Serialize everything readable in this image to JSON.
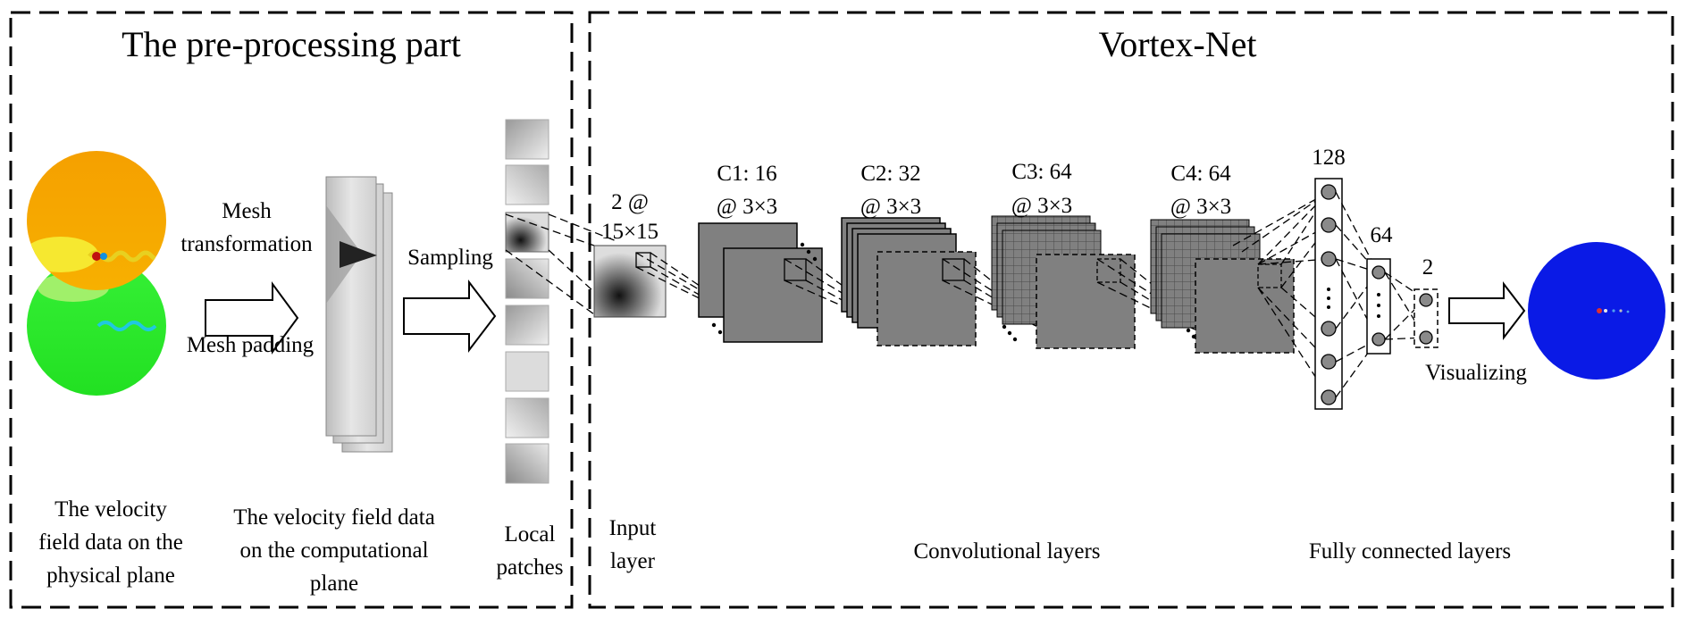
{
  "preprocessing": {
    "title": "The pre-processing part",
    "mesh_label_1": "Mesh",
    "mesh_label_2": "transformation",
    "mesh_padding": "Mesh padding",
    "sampling": "Sampling",
    "caption_physical": [
      "The velocity",
      "field data on the",
      "physical plane"
    ],
    "caption_computational": [
      "The velocity field data",
      "on the computational",
      "plane"
    ],
    "caption_patches": [
      "Local",
      "patches"
    ]
  },
  "vortexnet": {
    "title": "Vortex-Net",
    "input_label": [
      "2 @",
      "15×15"
    ],
    "input_caption": [
      "Input",
      "layer"
    ],
    "conv_layers": [
      {
        "line1": "C1: 16",
        "line2": "@ 3×3"
      },
      {
        "line1": "C2:  32",
        "line2": "@ 3×3"
      },
      {
        "line1": "C3: 64",
        "line2": "@ 3×3"
      },
      {
        "line1": "C4: 64",
        "line2": "@ 3×3"
      }
    ],
    "conv_caption": "Convolutional layers",
    "fc_sizes": [
      "128",
      "64",
      "2"
    ],
    "fc_caption": "Fully connected layers",
    "visualizing": "Visualizing"
  },
  "colors": {
    "feature_map": "#808080",
    "flow_orange": "#f7a600",
    "flow_green": "#2ee82e",
    "result_blue": "#0a1ae6"
  }
}
